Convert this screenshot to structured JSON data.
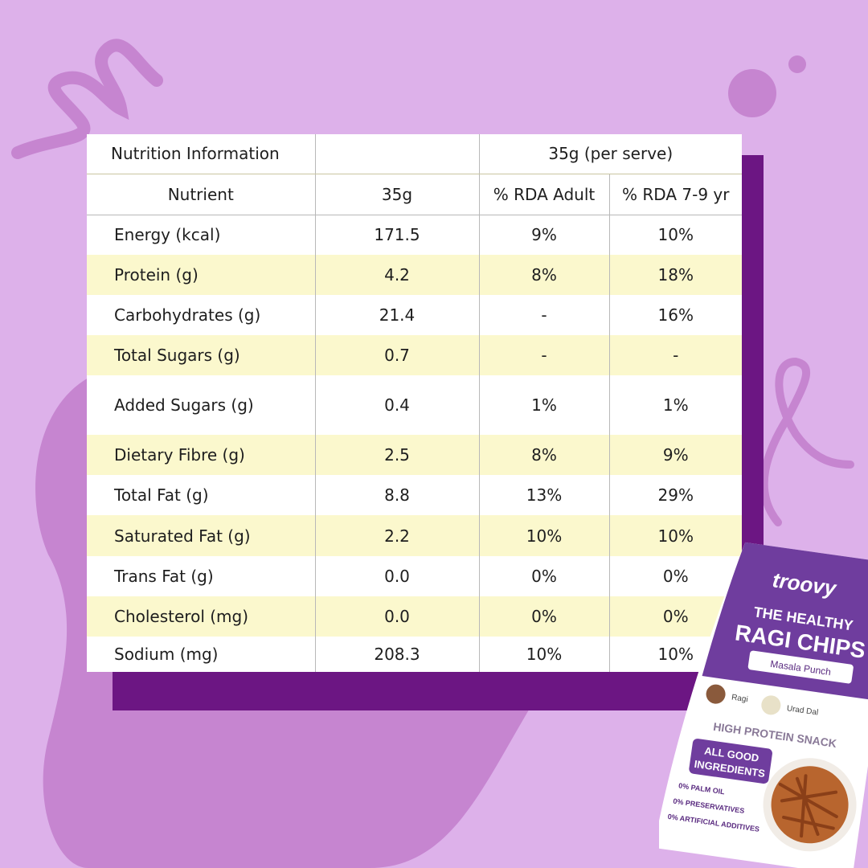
{
  "colors": {
    "background": "#ddb1ea",
    "blob": "#c685d0",
    "shadow": "#6c1683",
    "row_highlight": "#fbf8cd",
    "table_bg": "#ffffff"
  },
  "table": {
    "title": "Nutrition Information",
    "serving_header": "35g (per serve)",
    "columns": [
      "Nutrient",
      "35g",
      "% RDA Adult",
      "% RDA 7-9 yr"
    ],
    "rows": [
      {
        "nutrient": "Energy (kcal)",
        "amount": "171.5",
        "rda_adult": "9%",
        "rda_child": "10%"
      },
      {
        "nutrient": "Protein (g)",
        "amount": "4.2",
        "rda_adult": "8%",
        "rda_child": "18%"
      },
      {
        "nutrient": "Carbohydrates (g)",
        "amount": "21.4",
        "rda_adult": "-",
        "rda_child": "16%"
      },
      {
        "nutrient": "Total Sugars (g)",
        "amount": "0.7",
        "rda_adult": "-",
        "rda_child": "-"
      },
      {
        "nutrient": "Added Sugars (g)",
        "amount": "0.4",
        "rda_adult": "1%",
        "rda_child": "1%"
      },
      {
        "nutrient": "Dietary Fibre (g)",
        "amount": "2.5",
        "rda_adult": "8%",
        "rda_child": "9%"
      },
      {
        "nutrient": "Total Fat (g)",
        "amount": "8.8",
        "rda_adult": "13%",
        "rda_child": "29%"
      },
      {
        "nutrient": "Saturated Fat (g)",
        "amount": "2.2",
        "rda_adult": "10%",
        "rda_child": "10%"
      },
      {
        "nutrient": "Trans Fat (g)",
        "amount": "0.0",
        "rda_adult": "0%",
        "rda_child": "0%"
      },
      {
        "nutrient": "Cholesterol (mg)",
        "amount": "0.0",
        "rda_adult": "0%",
        "rda_child": "0%"
      },
      {
        "nutrient": "Sodium (mg)",
        "amount": "208.3",
        "rda_adult": "10%",
        "rda_child": "10%"
      }
    ]
  },
  "product": {
    "brand": "troovy",
    "line1": "THE HEALTHY",
    "line2": "RAGI CHIPS",
    "flavour": "Masala Punch",
    "ingredients": [
      "Ragi",
      "Urad Dal"
    ],
    "tagline": "HIGH PROTEIN SNACK",
    "badge_line1": "ALL GOOD",
    "badge_line2": "INGREDIENTS",
    "claims": [
      "0% PALM OIL",
      "0% PRESERVATIVES",
      "0% ARTIFICIAL ADDITIVES"
    ]
  }
}
